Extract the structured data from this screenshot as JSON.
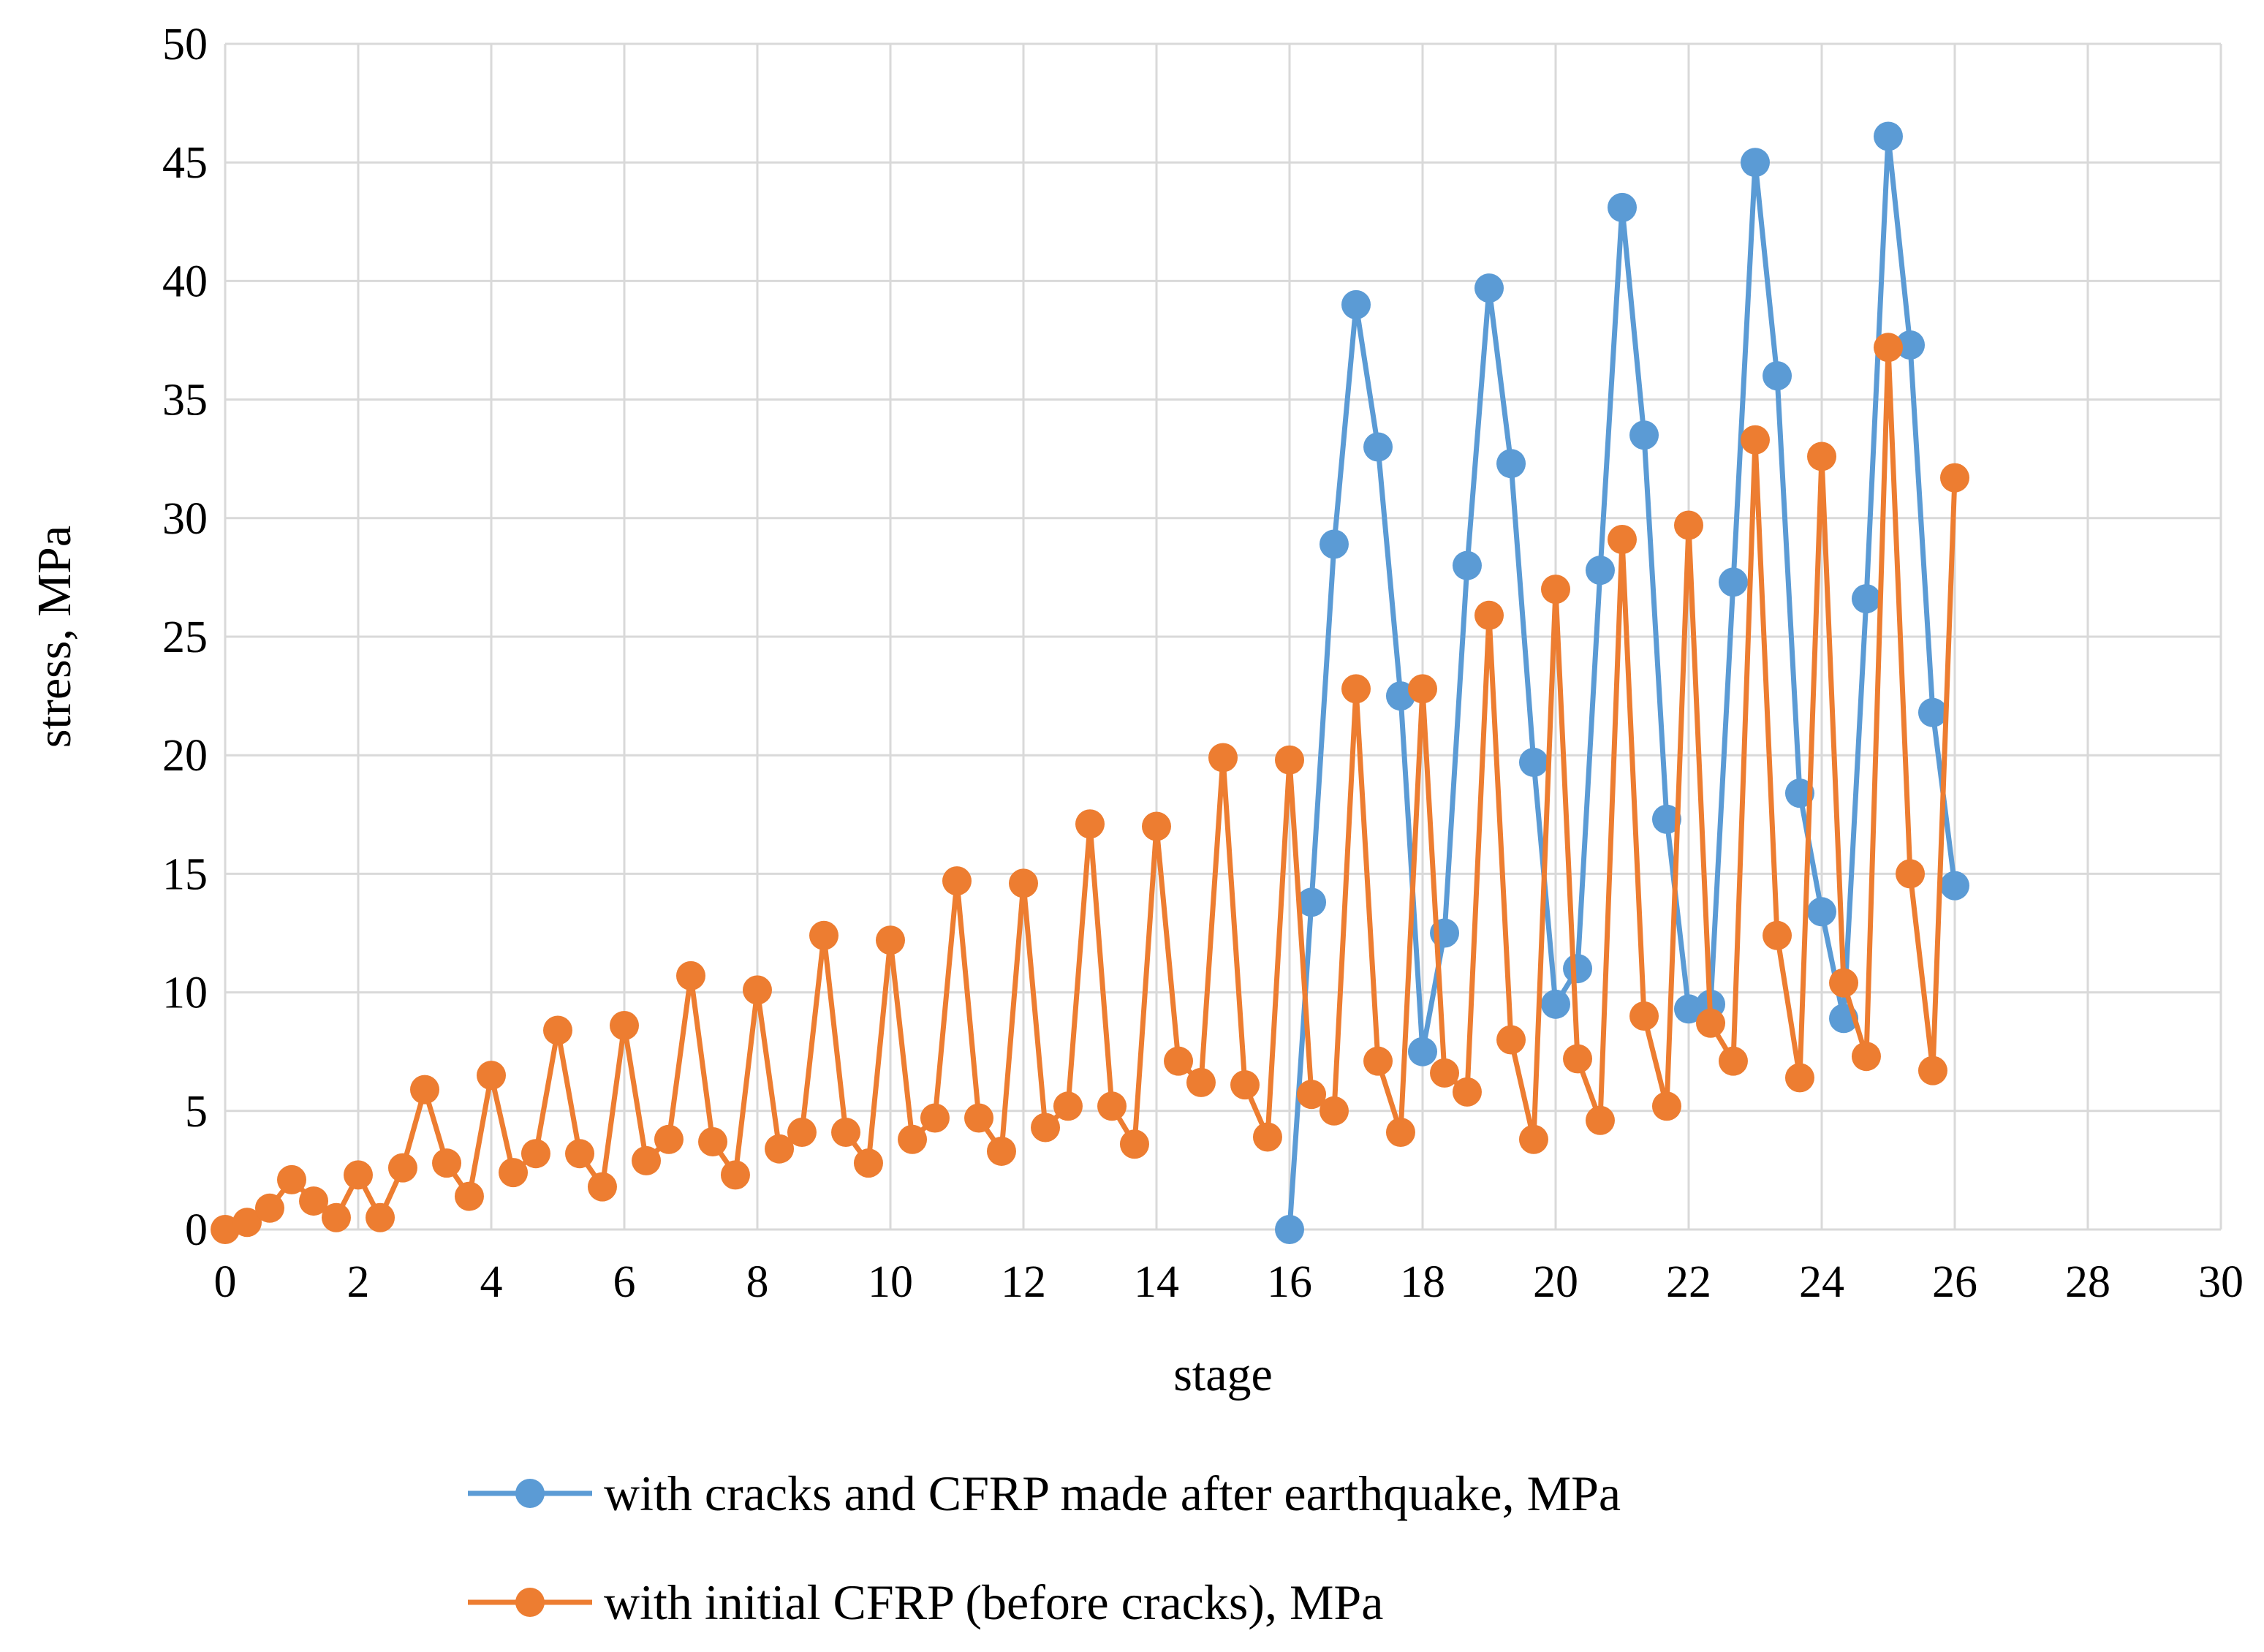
{
  "chart_data": {
    "type": "line",
    "title": "",
    "xlabel": "stage",
    "ylabel": "stress, MPa",
    "xlim": [
      0,
      30
    ],
    "ylim": [
      0,
      50
    ],
    "xticks": [
      0,
      2,
      4,
      6,
      8,
      10,
      12,
      14,
      16,
      18,
      20,
      22,
      24,
      26,
      28,
      30
    ],
    "yticks": [
      0,
      5,
      10,
      15,
      20,
      25,
      30,
      35,
      40,
      45,
      50
    ],
    "grid": true,
    "legend_position": "bottom",
    "series": [
      {
        "name": "with cracks and CFRP made after earthquake, MPa",
        "color": "#5B9BD5",
        "x": [
          16,
          16.33,
          16.67,
          17,
          17.33,
          17.67,
          18,
          18.33,
          18.67,
          19,
          19.33,
          19.67,
          20,
          20.33,
          20.67,
          21,
          21.33,
          21.67,
          22,
          22.33,
          22.67,
          23,
          23.33,
          23.67,
          24,
          24.33,
          24.67,
          25,
          25.33,
          25.67,
          26
        ],
        "y": [
          0,
          13.8,
          28.9,
          39,
          33,
          22.5,
          7.5,
          12.5,
          28,
          39.7,
          32.3,
          19.7,
          9.5,
          11,
          27.8,
          43.1,
          33.5,
          17.3,
          9.3,
          9.5,
          27.3,
          45,
          36,
          18.4,
          13.4,
          8.9,
          26.6,
          46.1,
          37.3,
          21.8,
          14.5
        ]
      },
      {
        "name": "with initial CFRP (before cracks), MPa",
        "color": "#ED7D31",
        "x": [
          0,
          0.33,
          0.67,
          1,
          1.33,
          1.67,
          2,
          2.33,
          2.67,
          3,
          3.33,
          3.67,
          4,
          4.33,
          4.67,
          5,
          5.33,
          5.67,
          6,
          6.33,
          6.67,
          7,
          7.33,
          7.67,
          8,
          8.33,
          8.67,
          9,
          9.33,
          9.67,
          10,
          10.33,
          10.67,
          11,
          11.33,
          11.67,
          12,
          12.33,
          12.67,
          13,
          13.33,
          13.67,
          14,
          14.33,
          14.67,
          15,
          15.33,
          15.67,
          16,
          16.33,
          16.67,
          17,
          17.33,
          17.67,
          18,
          18.33,
          18.67,
          19,
          19.33,
          19.67,
          20,
          20.33,
          20.67,
          21,
          21.33,
          21.67,
          22,
          22.33,
          22.67,
          23,
          23.33,
          23.67,
          24,
          24.33,
          24.67,
          25,
          25.33,
          25.67,
          26
        ],
        "y": [
          0,
          0.3,
          0.9,
          2.1,
          1.2,
          0.5,
          2.3,
          0.5,
          2.6,
          5.9,
          2.8,
          1.4,
          6.5,
          2.4,
          3.2,
          8.4,
          3.2,
          1.8,
          8.6,
          2.9,
          3.8,
          10.7,
          3.7,
          2.3,
          10.1,
          3.4,
          4.1,
          12.4,
          4.1,
          2.8,
          12.2,
          3.8,
          4.7,
          14.7,
          4.7,
          3.3,
          14.6,
          4.3,
          5.2,
          17.1,
          5.2,
          3.6,
          17,
          7.1,
          6.2,
          19.9,
          6.1,
          3.9,
          19.8,
          5.7,
          5,
          22.8,
          7.1,
          4.1,
          22.8,
          6.6,
          5.8,
          25.9,
          8,
          3.8,
          27,
          7.2,
          4.6,
          29.1,
          9,
          5.2,
          29.7,
          8.7,
          7.1,
          33.3,
          12.4,
          6.4,
          32.6,
          10.4,
          7.3,
          37.2,
          15,
          6.7,
          31.7
        ]
      }
    ]
  }
}
